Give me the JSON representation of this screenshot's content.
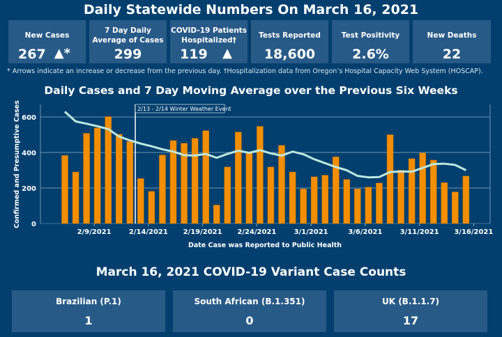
{
  "header": {
    "title": "Daily Statewide Numbers On March 16, 2021"
  },
  "cards": [
    {
      "label": "New Cases",
      "value": "267",
      "arrow": "▲*"
    },
    {
      "label": "7 Day Daily Average of Cases",
      "value": "299"
    },
    {
      "label": "COVID-19 Patients Hospitalized†",
      "value": "119",
      "arrow": "▲"
    },
    {
      "label": "Tests Reported",
      "value": "18,600"
    },
    {
      "label": "Test Positivity",
      "value": "2.6%"
    },
    {
      "label": "New Deaths",
      "value": "22"
    }
  ],
  "footnote": "* Arrows indicate an increase or decrease from the previous day. †Hospitalization data from Oregon’s Hospital Capacity Web System (HOSCAP).",
  "colors": {
    "background": "#023f6e",
    "card": "#285a87",
    "bar": "#f28e00",
    "line": "#bde8df"
  },
  "chart_data": {
    "type": "bar",
    "title": "Daily Cases and 7 Day Moving Average over the Previous Six Weeks",
    "xlabel": "Date Case was Reported to Public Health",
    "ylabel": "Confirmed and Presumptive Cases",
    "ylim": [
      0,
      670
    ],
    "yticks": [
      0,
      200,
      400,
      600
    ],
    "xtick_labels": [
      "2/9/2021",
      "2/14/2021",
      "2/19/2021",
      "2/24/2021",
      "3/1/2021",
      "3/6/2021",
      "3/11/2021",
      "3/16/2021"
    ],
    "xtick_index": [
      2,
      7,
      12,
      17,
      22,
      27,
      32,
      37
    ],
    "categories": [
      "2/7",
      "2/8",
      "2/9",
      "2/10",
      "2/11",
      "2/12",
      "2/13",
      "2/14",
      "2/15",
      "2/16",
      "2/17",
      "2/18",
      "2/19",
      "2/20",
      "2/21",
      "2/22",
      "2/23",
      "2/24",
      "2/25",
      "2/26",
      "2/27",
      "2/28",
      "3/1",
      "3/2",
      "3/3",
      "3/4",
      "3/5",
      "3/6",
      "3/7",
      "3/8",
      "3/9",
      "3/10",
      "3/11",
      "3/12",
      "3/13",
      "3/14",
      "3/15",
      "3/16"
    ],
    "series": [
      {
        "name": "Daily Cases",
        "type": "bar",
        "values": [
          383,
          290,
          508,
          538,
          602,
          503,
          462,
          253,
          181,
          386,
          467,
          452,
          480,
          523,
          104,
          318,
          515,
          398,
          547,
          318,
          440,
          290,
          195,
          263,
          272,
          375,
          248,
          195,
          205,
          228,
          500,
          300,
          365,
          397,
          357,
          230,
          178,
          267
        ]
      },
      {
        "name": "7 Day Moving Average",
        "type": "line",
        "values": [
          630,
          575,
          562,
          548,
          532,
          490,
          468,
          450,
          435,
          418,
          405,
          385,
          383,
          392,
          370,
          392,
          410,
          398,
          413,
          395,
          382,
          405,
          390,
          362,
          340,
          318,
          300,
          268,
          260,
          262,
          290,
          293,
          292,
          313,
          335,
          337,
          330,
          300
        ]
      }
    ],
    "annotation": {
      "label": "2/13 - 2/14 Winter Weather Event",
      "after_index": 6
    },
    "grid": true
  },
  "variants": {
    "title": "March 16, 2021 COVID-19 Variant Case Counts",
    "items": [
      {
        "label": "Brazilian (P.1)",
        "value": "1"
      },
      {
        "label": "South African (B.1.351)",
        "value": "0"
      },
      {
        "label": "UK (B.1.1.7)",
        "value": "17"
      }
    ]
  }
}
